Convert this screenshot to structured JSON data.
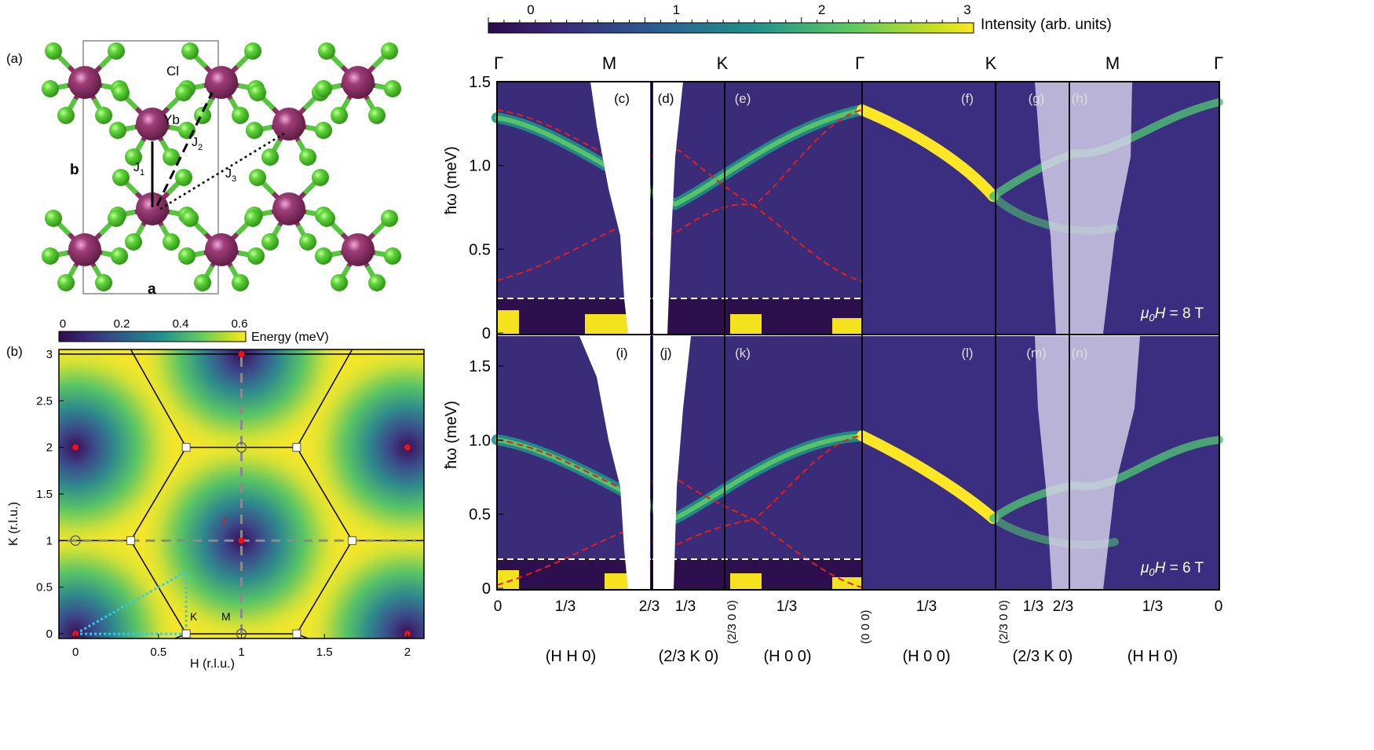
{
  "panels": {
    "a": "(a)",
    "b": "(b)"
  },
  "crystal": {
    "yb": "Yb",
    "cl": "Cl",
    "b_label": "b",
    "a_label": "a",
    "j1": "J",
    "j1_sub": "1",
    "j2": "J",
    "j2_sub": "2",
    "j3": "J",
    "j3_sub": "3"
  },
  "energy_map": {
    "colorbar_label": "Energy (meV)",
    "colorbar_ticks": [
      "0",
      "0.2",
      "0.4",
      "0.6"
    ],
    "xlabel": "H (r.l.u.)",
    "ylabel": "K (r.l.u.)",
    "x_ticks": [
      "0",
      "0.5",
      "1",
      "1.5",
      "2"
    ],
    "y_ticks": [
      "0",
      "0.5",
      "1",
      "1.5",
      "2",
      "2.5",
      "3"
    ],
    "gamma": "Γ",
    "k": "K",
    "m": "M",
    "xlim": [
      -0.1,
      2.1
    ],
    "ylim": [
      -0.05,
      3.05
    ],
    "minima": [
      [
        0,
        0
      ],
      [
        2,
        0
      ],
      [
        1,
        1
      ],
      [
        0,
        2
      ],
      [
        2,
        2
      ],
      [
        1,
        3
      ]
    ]
  },
  "intensity_bar": {
    "label": "Intensity (arb. units)",
    "ticks": [
      "0",
      "1",
      "2",
      "3"
    ]
  },
  "dispersion": {
    "ylabel": "ħω (meV)",
    "field_prefix": "μ0H",
    "field_top": " = 8 T",
    "field_bottom": " = 6 T",
    "high_symmetry_points": [
      "Γ",
      "M",
      "K",
      "Γ",
      "K",
      "M",
      "Γ"
    ],
    "top_row_labels": [
      "(c)",
      "(d)",
      "(e)",
      "(f)",
      "(g)",
      "(h)"
    ],
    "bottom_row_labels": [
      "(i)",
      "(j)",
      "(k)",
      "(l)",
      "(m)",
      "(n)"
    ],
    "top_y_ticks": [
      "0",
      "0.5",
      "1.0",
      "1.5"
    ],
    "bottom_y_ticks": [
      "0",
      "0.5",
      "1.0",
      "1.5"
    ],
    "x_tick_labels": [
      "0",
      "1/3",
      "2/3",
      "1/3",
      "1/3",
      "1/3",
      "1/3",
      "2/3",
      "1/3",
      "0"
    ],
    "rotated_labels": [
      "(2/3 0 0)",
      "(0 0 0)",
      "(2/3 0 0)"
    ],
    "path_labels": [
      "(H H 0)",
      "(2/3 K 0)",
      "(H 0 0)",
      "(H 0 0)",
      "(2/3 K 0)",
      "(H H 0)"
    ]
  },
  "colors": {
    "yb": "#8e2d62",
    "cl": "#52c83a",
    "dash_red": "#e02020",
    "bz_gray": "#8a8a8a",
    "path_cyan": "#3cc8e6"
  }
}
